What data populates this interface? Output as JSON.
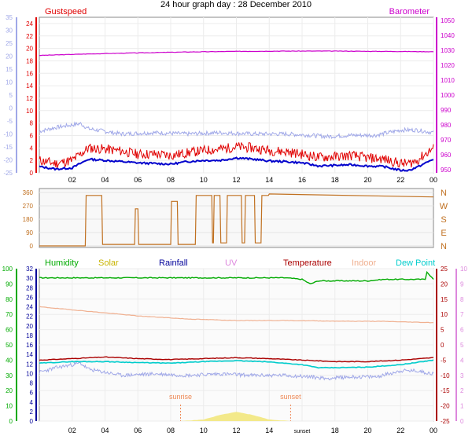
{
  "title": "24 hour graph day : 28 December 2010",
  "colors": {
    "gust": "#e00000",
    "wind": "#0000cc",
    "baro": "#cc00cc",
    "temp_left": "#a0a8e8",
    "direction": "#c07020",
    "humidity": "#00aa00",
    "solar": "#c8b400",
    "rainfall": "#000099",
    "uv": "#dd88dd",
    "temperature": "#aa0000",
    "indoor": "#f0b090",
    "dewpoint": "#00cccc",
    "daylight": "#f3e98a",
    "sun": "#ee8855"
  },
  "chart_data": [
    {
      "type": "line",
      "panel": "wind",
      "legend": {
        "left": "Gustspeed",
        "right": "Barometer"
      },
      "x_ticks": [
        "02",
        "04",
        "06",
        "08",
        "10",
        "12",
        "14",
        "16",
        "18",
        "20",
        "22",
        "00"
      ],
      "x_range_hours": [
        0,
        24
      ],
      "y_far_left": {
        "ticks": [
          "35",
          "30",
          "25",
          "20",
          "15",
          "10",
          "5",
          "0",
          "-5",
          "-10",
          "-15",
          "-20",
          "-25"
        ],
        "range": [
          -25,
          35
        ]
      },
      "y_left": {
        "ticks": [
          "0",
          "2",
          "4",
          "6",
          "8",
          "10",
          "12",
          "14",
          "16",
          "18",
          "20",
          "22",
          "24"
        ],
        "range": [
          0,
          25
        ]
      },
      "y_right": {
        "ticks": [
          "950",
          "960",
          "970",
          "980",
          "990",
          "1000",
          "1010",
          "1020",
          "1030",
          "1040",
          "1050"
        ],
        "range": [
          948,
          1052
        ]
      },
      "series": [
        {
          "key": "baro",
          "axis": "right",
          "x": [
            0,
            3,
            6,
            9,
            12,
            15,
            18,
            21,
            24
          ],
          "values": [
            1026.5,
            1027.5,
            1028.2,
            1028.8,
            1029.2,
            1029.4,
            1029.4,
            1029.2,
            1029.0
          ]
        },
        {
          "key": "temp_left",
          "axis": "far_left",
          "x": [
            0,
            1,
            2.5,
            3,
            5,
            7,
            9,
            11,
            13,
            15,
            16.5,
            17.5,
            19,
            20.5,
            22,
            23,
            24
          ],
          "values": [
            -9,
            -7.5,
            -6,
            -8,
            -10,
            -9.5,
            -10,
            -9.5,
            -10,
            -10,
            -10.5,
            -11,
            -10.5,
            -10.5,
            -8.5,
            -8.5,
            -9.5
          ]
        },
        {
          "key": "gust",
          "axis": "left",
          "x": [
            0,
            1,
            2,
            2.5,
            3,
            4,
            5,
            6,
            7,
            8,
            9,
            10,
            11,
            12,
            13,
            14,
            15,
            16,
            17,
            18,
            19,
            20,
            21,
            22,
            22.5,
            23,
            24
          ],
          "values": [
            2,
            1.5,
            2,
            3,
            4,
            3.8,
            3.5,
            3,
            3,
            2.8,
            3.2,
            3.6,
            3.8,
            4.2,
            4,
            3.6,
            3.4,
            3,
            2.5,
            2.6,
            2.8,
            2.4,
            2.2,
            1.5,
            1.5,
            2,
            4
          ]
        },
        {
          "key": "wind",
          "axis": "left",
          "x": [
            0,
            1,
            2,
            2.5,
            3,
            4,
            5,
            6,
            7,
            8,
            9,
            10,
            11,
            12,
            13,
            14,
            15,
            16,
            17,
            18,
            19,
            20,
            21,
            22,
            22.5,
            23,
            24
          ],
          "values": [
            1,
            0.6,
            0.8,
            1.5,
            2.2,
            2,
            1.8,
            1.6,
            1.5,
            1.4,
            1.8,
            2,
            2,
            2.4,
            2.2,
            1.9,
            1.8,
            1.6,
            1.1,
            1.2,
            1.3,
            1.1,
            1,
            0.4,
            0.4,
            0.9,
            2.2
          ]
        }
      ]
    },
    {
      "type": "line",
      "panel": "direction",
      "x_range_hours": [
        0,
        24
      ],
      "y_left": {
        "ticks": [
          "0",
          "90",
          "180",
          "270",
          "360"
        ],
        "range": [
          0,
          360
        ]
      },
      "y_right": {
        "ticks": [
          "N",
          "W",
          "S",
          "E",
          "N"
        ]
      },
      "series": [
        {
          "key": "direction",
          "x": [
            0,
            2,
            2.8,
            2.85,
            3.8,
            3.85,
            5.8,
            5.85,
            6.0,
            6.05,
            8.0,
            8.05,
            8.4,
            8.45,
            9.5,
            9.55,
            10.5,
            10.55,
            10.6,
            10.65,
            11,
            11.05,
            11.4,
            11.45,
            12.3,
            12.35,
            12.5,
            12.55,
            13.1,
            13.15,
            13.5,
            13.55,
            13.95,
            14,
            24
          ],
          "values": [
            0,
            0,
            0,
            340,
            340,
            10,
            10,
            250,
            250,
            10,
            10,
            300,
            300,
            10,
            10,
            340,
            340,
            20,
            20,
            340,
            340,
            20,
            20,
            340,
            340,
            20,
            20,
            340,
            340,
            20,
            20,
            340,
            340,
            350,
            330
          ]
        }
      ]
    },
    {
      "type": "line",
      "panel": "temperature",
      "legend": [
        "Humidity",
        "Solar",
        "Rainfall",
        "UV",
        "Temperature",
        "Indoor",
        "Dew Point"
      ],
      "annotations": {
        "sunrise": "sunrise",
        "sunset": "sunset",
        "sunrise_hour": 8.6,
        "sunset_hour": 15.3
      },
      "x_ticks": [
        "02",
        "04",
        "06",
        "08",
        "10",
        "12",
        "14",
        "sunset",
        "18",
        "20",
        "22",
        "00"
      ],
      "x_range_hours": [
        0,
        24
      ],
      "y_humidity": {
        "ticks": [
          "0",
          "10",
          "20",
          "30",
          "40",
          "50",
          "60",
          "70",
          "80",
          "90",
          "100"
        ],
        "range": [
          0,
          100
        ]
      },
      "y_rainfall": {
        "ticks": [
          "0",
          "2",
          "4",
          "6",
          "8",
          "10",
          "12",
          "14",
          "16",
          "18",
          "20",
          "22",
          "24",
          "26",
          "28",
          "30",
          "32"
        ],
        "range": [
          0,
          32
        ]
      },
      "y_temperature": {
        "ticks": [
          "-25",
          "-20",
          "-15",
          "-10",
          "-5",
          "0",
          "5",
          "10",
          "15",
          "20",
          "25"
        ],
        "range": [
          -25,
          25
        ]
      },
      "y_uv": {
        "ticks": [
          "0",
          "1",
          "2",
          "3",
          "4",
          "5",
          "6",
          "7",
          "8",
          "9",
          "10"
        ],
        "range": [
          0,
          10
        ]
      },
      "series": [
        {
          "key": "humidity",
          "axis": "humidity",
          "x": [
            0,
            6,
            12,
            15,
            16,
            16.5,
            17,
            20,
            21,
            23.5,
            23.6,
            24
          ],
          "values": [
            94,
            94,
            94,
            94,
            93,
            90,
            92,
            92,
            93,
            93,
            98,
            93
          ]
        },
        {
          "key": "indoor",
          "axis": "temperature",
          "x": [
            0,
            3,
            6,
            9,
            12,
            15,
            18,
            21,
            24
          ],
          "values": [
            12.5,
            11,
            9.5,
            8.5,
            8,
            8,
            7.8,
            7.7,
            7.3
          ]
        },
        {
          "key": "temperature",
          "axis": "temperature",
          "x": [
            0,
            2,
            4,
            6,
            8,
            10,
            12,
            14,
            16,
            18,
            20,
            22,
            24
          ],
          "values": [
            -5,
            -4.5,
            -4,
            -4.5,
            -4.8,
            -4.5,
            -4.2,
            -4.5,
            -5,
            -5.5,
            -5.5,
            -5,
            -4.2
          ]
        },
        {
          "key": "dewpoint",
          "axis": "temperature",
          "x": [
            0,
            2,
            4,
            6,
            8,
            10,
            12,
            14,
            16,
            17,
            18,
            20,
            22,
            24
          ],
          "values": [
            -6,
            -5.5,
            -5.5,
            -5.8,
            -6,
            -5.5,
            -5.2,
            -5.6,
            -6.5,
            -7.5,
            -7.5,
            -7.3,
            -6.5,
            -5
          ]
        },
        {
          "key": "temp_left",
          "axis": "temperature",
          "x": [
            0,
            1,
            2.5,
            3,
            5,
            7,
            9,
            11,
            13,
            15,
            16.5,
            17.5,
            19,
            20.5,
            22,
            23,
            24
          ],
          "values": [
            -9,
            -7.5,
            -6,
            -8,
            -10,
            -9.5,
            -10,
            -9.5,
            -10,
            -10,
            -10.5,
            -11,
            -10.5,
            -10.5,
            -8.5,
            -8.5,
            -9.5
          ]
        },
        {
          "key": "solar",
          "axis": "uv",
          "x": [
            8.6,
            10,
            11,
            12,
            13,
            14,
            15.3
          ],
          "values": [
            0,
            0.1,
            0.4,
            0.6,
            0.4,
            0.1,
            0
          ]
        }
      ]
    }
  ]
}
